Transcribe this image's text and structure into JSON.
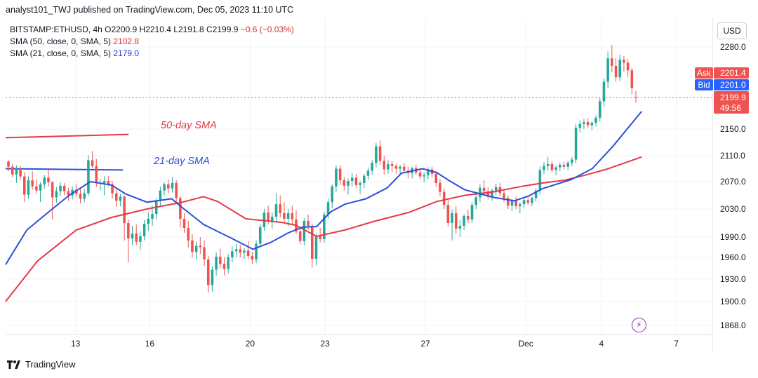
{
  "header": {
    "text": "analyst101_TWJ published on TradingView.com, Dec 05, 2023 11:10 UTC"
  },
  "legend": {
    "symbol": "BITSTAMP:ETHUSD, 4h",
    "open": "O2200.9",
    "high": "H2210.4",
    "low": "L2191.8",
    "close": "C2199.9",
    "change": "−0.6 (−0.03%)",
    "sma50_label": "SMA (50, close, 0, SMA, 5)",
    "sma50_value": "2102.8",
    "sma21_label": "SMA (21, close, 0, SMA, 5)",
    "sma21_value": "2179.0"
  },
  "currency": "USD",
  "footer": {
    "brand": "TradingView"
  },
  "colors": {
    "up": "#26a69a",
    "down": "#ef5350",
    "sma50": "#e53945",
    "sma21": "#2b4fd8",
    "grid": "#f0f3fa",
    "axis": "#131722"
  },
  "chart_data": {
    "type": "candlestick",
    "y_ticks": [
      "2280.0",
      "2150.0",
      "2110.0",
      "2070.0",
      "2030.0",
      "1990.0",
      "1960.0",
      "1930.0",
      "1900.0",
      "1868.0"
    ],
    "x_ticks": [
      {
        "label": "13",
        "pos": 0.099
      },
      {
        "label": "16",
        "pos": 0.204
      },
      {
        "label": "20",
        "pos": 0.346
      },
      {
        "label": "23",
        "pos": 0.452
      },
      {
        "label": "27",
        "pos": 0.594
      },
      {
        "label": "Dec",
        "pos": 0.736
      },
      {
        "label": "4",
        "pos": 0.843
      },
      {
        "label": "7",
        "pos": 0.949
      }
    ],
    "price_labels": [
      {
        "tag": "Ask",
        "value": "2201.4",
        "color": "#ef5350"
      },
      {
        "tag": "Bid",
        "value": "2201.0",
        "color": "#2962ff"
      },
      {
        "tag": "",
        "value": "2199.9",
        "sub": "49:56",
        "color": "#ef5350"
      }
    ],
    "last_price": 2199.9,
    "annotations": [
      {
        "text": "50-day SMA",
        "color": "#e53945"
      },
      {
        "text": "21-day SMA",
        "color": "#2b4fd8"
      }
    ],
    "annotation_lines": [
      {
        "color": "#e53945",
        "from": [
          0,
          2137
        ],
        "to": [
          0.174,
          2142
        ]
      },
      {
        "color": "#2b4fd8",
        "from": [
          0,
          2090
        ],
        "to": [
          0.166,
          2088
        ]
      }
    ],
    "candles": [
      [
        2101,
        2103,
        2086,
        2093
      ],
      [
        2093,
        2097,
        2077,
        2081
      ],
      [
        2081,
        2095,
        2068,
        2090
      ],
      [
        2090,
        2094,
        2073,
        2078
      ],
      [
        2078,
        2084,
        2040,
        2051
      ],
      [
        2051,
        2078,
        2045,
        2072
      ],
      [
        2072,
        2086,
        2058,
        2063
      ],
      [
        2063,
        2074,
        2052,
        2057
      ],
      [
        2057,
        2069,
        2040,
        2066
      ],
      [
        2066,
        2080,
        2060,
        2076
      ],
      [
        2076,
        2089,
        2063,
        2069
      ],
      [
        2069,
        2071,
        2015,
        2047
      ],
      [
        2047,
        2062,
        2039,
        2056
      ],
      [
        2056,
        2069,
        2049,
        2064
      ],
      [
        2064,
        2068,
        2050,
        2056
      ],
      [
        2056,
        2061,
        2042,
        2050
      ],
      [
        2050,
        2063,
        2044,
        2058
      ],
      [
        2058,
        2066,
        2048,
        2052
      ],
      [
        2052,
        2060,
        2038,
        2045
      ],
      [
        2045,
        2059,
        2040,
        2053
      ],
      [
        2053,
        2111,
        2049,
        2103
      ],
      [
        2103,
        2117,
        2091,
        2094
      ],
      [
        2094,
        2105,
        2062,
        2068
      ],
      [
        2068,
        2074,
        2057,
        2068
      ],
      [
        2068,
        2078,
        2050,
        2071
      ],
      [
        2071,
        2079,
        2063,
        2066
      ],
      [
        2066,
        2071,
        2045,
        2053
      ],
      [
        2053,
        2058,
        2033,
        2042
      ],
      [
        2042,
        2052,
        2034,
        2048
      ],
      [
        2048,
        2050,
        1985,
        2010
      ],
      [
        2010,
        2015,
        1953,
        1988
      ],
      [
        1988,
        2006,
        1978,
        1995
      ],
      [
        1995,
        2008,
        1978,
        1983
      ],
      [
        1983,
        1998,
        1971,
        1991
      ],
      [
        1991,
        2014,
        1985,
        2009
      ],
      [
        2009,
        2025,
        1999,
        2016
      ],
      [
        2016,
        2035,
        2006,
        2023
      ],
      [
        2023,
        2046,
        2015,
        2042
      ],
      [
        2042,
        2063,
        2035,
        2057
      ],
      [
        2057,
        2069,
        2050,
        2066
      ],
      [
        2066,
        2073,
        2053,
        2060
      ],
      [
        2060,
        2077,
        2054,
        2068
      ],
      [
        2068,
        2072,
        2038,
        2046
      ],
      [
        2046,
        2049,
        2004,
        2016
      ],
      [
        2016,
        2024,
        1996,
        2003
      ],
      [
        2003,
        2013,
        1975,
        1985
      ],
      [
        1985,
        1994,
        1960,
        1968
      ],
      [
        1968,
        1983,
        1957,
        1977
      ],
      [
        1977,
        1990,
        1965,
        1975
      ],
      [
        1975,
        1985,
        1948,
        1957
      ],
      [
        1957,
        1962,
        1912,
        1922
      ],
      [
        1922,
        1948,
        1913,
        1943
      ],
      [
        1943,
        1967,
        1935,
        1961
      ],
      [
        1961,
        1973,
        1945,
        1951
      ],
      [
        1951,
        1960,
        1935,
        1944
      ],
      [
        1944,
        1965,
        1938,
        1960
      ],
      [
        1960,
        1976,
        1953,
        1969
      ],
      [
        1969,
        1980,
        1960,
        1972
      ],
      [
        1972,
        1979,
        1960,
        1967
      ],
      [
        1967,
        1974,
        1958,
        1970
      ],
      [
        1970,
        1984,
        1958,
        1962
      ],
      [
        1962,
        1968,
        1951,
        1957
      ],
      [
        1957,
        1985,
        1952,
        1980
      ],
      [
        1980,
        2008,
        1975,
        2004
      ],
      [
        2004,
        2030,
        1999,
        2025
      ],
      [
        2025,
        2035,
        2008,
        2013
      ],
      [
        2013,
        2025,
        2002,
        2019
      ],
      [
        2019,
        2053,
        2012,
        2037
      ],
      [
        2037,
        2050,
        2018,
        2024
      ],
      [
        2024,
        2040,
        2012,
        2016
      ],
      [
        2016,
        2030,
        2006,
        2024
      ],
      [
        2024,
        2035,
        2008,
        2015
      ],
      [
        2015,
        2028,
        1994,
        1998
      ],
      [
        1998,
        2005,
        1979,
        1984
      ],
      [
        1984,
        2017,
        1978,
        2013
      ],
      [
        2013,
        2022,
        2000,
        2006
      ],
      [
        2006,
        2009,
        1946,
        1958
      ],
      [
        1958,
        1995,
        1949,
        1992
      ],
      [
        1992,
        2003,
        1982,
        1987
      ],
      [
        1987,
        2026,
        1982,
        2022
      ],
      [
        2022,
        2045,
        2016,
        2040
      ],
      [
        2040,
        2066,
        2031,
        2063
      ],
      [
        2063,
        2095,
        2055,
        2090
      ],
      [
        2090,
        2096,
        2065,
        2072
      ],
      [
        2072,
        2077,
        2057,
        2064
      ],
      [
        2064,
        2075,
        2051,
        2071
      ],
      [
        2071,
        2083,
        2063,
        2076
      ],
      [
        2076,
        2082,
        2061,
        2065
      ],
      [
        2065,
        2071,
        2052,
        2068
      ],
      [
        2068,
        2082,
        2061,
        2079
      ],
      [
        2079,
        2092,
        2073,
        2087
      ],
      [
        2087,
        2103,
        2081,
        2099
      ],
      [
        2099,
        2129,
        2092,
        2124
      ],
      [
        2124,
        2133,
        2096,
        2102
      ],
      [
        2102,
        2110,
        2081,
        2089
      ],
      [
        2089,
        2103,
        2082,
        2097
      ],
      [
        2097,
        2102,
        2085,
        2094
      ],
      [
        2094,
        2098,
        2082,
        2090
      ],
      [
        2090,
        2096,
        2081,
        2093
      ],
      [
        2093,
        2099,
        2085,
        2087
      ],
      [
        2087,
        2093,
        2075,
        2083
      ],
      [
        2083,
        2093,
        2075,
        2091
      ],
      [
        2091,
        2096,
        2081,
        2084
      ],
      [
        2084,
        2089,
        2074,
        2078
      ],
      [
        2078,
        2084,
        2069,
        2080
      ],
      [
        2080,
        2092,
        2074,
        2089
      ],
      [
        2089,
        2093,
        2076,
        2082
      ],
      [
        2082,
        2086,
        2062,
        2068
      ],
      [
        2068,
        2074,
        2049,
        2055
      ],
      [
        2055,
        2060,
        2030,
        2036
      ],
      [
        2036,
        2045,
        2005,
        2010
      ],
      [
        2010,
        2029,
        1985,
        2024
      ],
      [
        2024,
        2034,
        1995,
        2002
      ],
      [
        2002,
        2014,
        1990,
        2006
      ],
      [
        2006,
        2023,
        2000,
        2020
      ],
      [
        2020,
        2029,
        2010,
        2015
      ],
      [
        2015,
        2040,
        2010,
        2036
      ],
      [
        2036,
        2052,
        2030,
        2047
      ],
      [
        2047,
        2066,
        2040,
        2061
      ],
      [
        2061,
        2072,
        2050,
        2056
      ],
      [
        2056,
        2062,
        2044,
        2048
      ],
      [
        2048,
        2060,
        2042,
        2057
      ],
      [
        2057,
        2067,
        2050,
        2062
      ],
      [
        2062,
        2068,
        2049,
        2053
      ],
      [
        2053,
        2058,
        2040,
        2046
      ],
      [
        2046,
        2050,
        2030,
        2035
      ],
      [
        2035,
        2045,
        2027,
        2043
      ],
      [
        2043,
        2048,
        2030,
        2034
      ],
      [
        2034,
        2040,
        2024,
        2037
      ],
      [
        2037,
        2047,
        2031,
        2043
      ],
      [
        2043,
        2049,
        2036,
        2039
      ],
      [
        2039,
        2048,
        2034,
        2046
      ],
      [
        2046,
        2060,
        2041,
        2057
      ],
      [
        2057,
        2093,
        2051,
        2088
      ],
      [
        2088,
        2100,
        2082,
        2094
      ],
      [
        2094,
        2108,
        2087,
        2097
      ],
      [
        2097,
        2102,
        2084,
        2088
      ],
      [
        2088,
        2095,
        2080,
        2092
      ],
      [
        2092,
        2099,
        2086,
        2096
      ],
      [
        2096,
        2101,
        2089,
        2093
      ],
      [
        2093,
        2102,
        2088,
        2099
      ],
      [
        2099,
        2108,
        2094,
        2104
      ],
      [
        2104,
        2158,
        2098,
        2152
      ],
      [
        2152,
        2164,
        2145,
        2158
      ],
      [
        2158,
        2166,
        2150,
        2161
      ],
      [
        2161,
        2167,
        2152,
        2156
      ],
      [
        2156,
        2162,
        2148,
        2160
      ],
      [
        2160,
        2172,
        2154,
        2168
      ],
      [
        2168,
        2199,
        2162,
        2194
      ],
      [
        2194,
        2231,
        2186,
        2225
      ],
      [
        2225,
        2273,
        2215,
        2262
      ],
      [
        2262,
        2283,
        2240,
        2250
      ],
      [
        2250,
        2262,
        2225,
        2232
      ],
      [
        2232,
        2268,
        2226,
        2260
      ],
      [
        2260,
        2266,
        2241,
        2255
      ],
      [
        2255,
        2261,
        2232,
        2243
      ],
      [
        2243,
        2247,
        2205,
        2215
      ],
      [
        2200.9,
        2210.4,
        2191.8,
        2199.9
      ]
    ],
    "sma50": [
      [
        0,
        1900
      ],
      [
        0.045,
        1955
      ],
      [
        0.1,
        2000
      ],
      [
        0.15,
        2018
      ],
      [
        0.2,
        2030
      ],
      [
        0.25,
        2040
      ],
      [
        0.28,
        2048
      ],
      [
        0.3,
        2041
      ],
      [
        0.34,
        2016
      ],
      [
        0.39,
        2011
      ],
      [
        0.41,
        2007
      ],
      [
        0.44,
        1991
      ],
      [
        0.48,
        2000
      ],
      [
        0.52,
        2012
      ],
      [
        0.57,
        2025
      ],
      [
        0.61,
        2041
      ],
      [
        0.65,
        2050
      ],
      [
        0.69,
        2055
      ],
      [
        0.73,
        2063
      ],
      [
        0.76,
        2068
      ],
      [
        0.79,
        2072
      ],
      [
        0.82,
        2080
      ],
      [
        0.85,
        2089
      ],
      [
        0.9,
        2108
      ]
    ],
    "sma21": [
      [
        0,
        1950
      ],
      [
        0.03,
        2000
      ],
      [
        0.06,
        2025
      ],
      [
        0.09,
        2050
      ],
      [
        0.12,
        2070
      ],
      [
        0.15,
        2065
      ],
      [
        0.17,
        2052
      ],
      [
        0.2,
        2040
      ],
      [
        0.235,
        2045
      ],
      [
        0.25,
        2032
      ],
      [
        0.28,
        2008
      ],
      [
        0.3,
        1998
      ],
      [
        0.32,
        1988
      ],
      [
        0.35,
        1972
      ],
      [
        0.375,
        1982
      ],
      [
        0.4,
        1996
      ],
      [
        0.42,
        2004
      ],
      [
        0.44,
        2005
      ],
      [
        0.46,
        2026
      ],
      [
        0.48,
        2037
      ],
      [
        0.51,
        2045
      ],
      [
        0.54,
        2061
      ],
      [
        0.56,
        2083
      ],
      [
        0.59,
        2090
      ],
      [
        0.61,
        2084
      ],
      [
        0.63,
        2070
      ],
      [
        0.65,
        2058
      ],
      [
        0.69,
        2047
      ],
      [
        0.72,
        2042
      ],
      [
        0.74,
        2049
      ],
      [
        0.76,
        2060
      ],
      [
        0.8,
        2073
      ],
      [
        0.83,
        2090
      ],
      [
        0.86,
        2125
      ],
      [
        0.88,
        2151
      ],
      [
        0.9,
        2178
      ]
    ]
  }
}
